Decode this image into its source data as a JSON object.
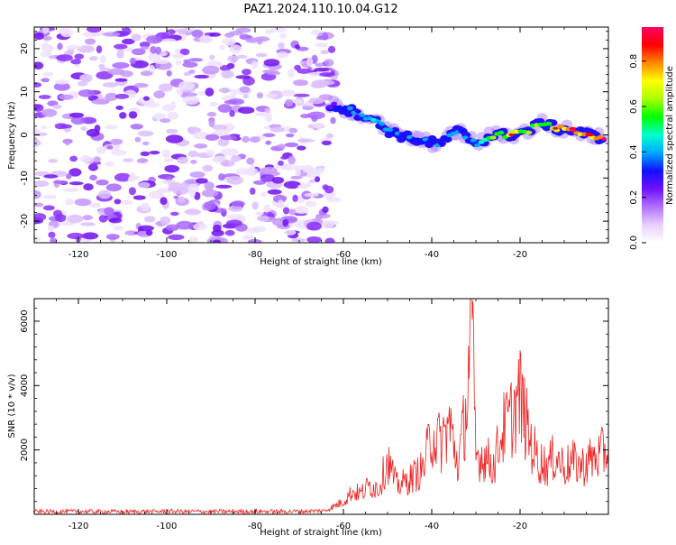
{
  "title": "PAZ1.2024.110.10.04.G12",
  "colors": {
    "snr_line": "#ee2222",
    "colormap": [
      "#ffffff",
      "#e8d0ff",
      "#b070ff",
      "#7010ff",
      "#1010ff",
      "#00aaff",
      "#00ffcc",
      "#00ff00",
      "#aaff00",
      "#ffff00",
      "#ff8800",
      "#ff0000",
      "#ff0066"
    ]
  },
  "chart_data": [
    {
      "type": "heatmap",
      "xlabel": "Height of straight line (km)",
      "ylabel": "Frequency (Hz)",
      "xlim": [
        -130,
        0
      ],
      "ylim": [
        -25,
        25
      ],
      "xticks": [
        -120,
        -100,
        -80,
        -60,
        -40,
        -20
      ],
      "yticks": [
        -20,
        -10,
        0,
        10,
        20
      ],
      "colorbar": {
        "label": "Normalized spectral amplitude",
        "range": [
          0,
          0.95
        ],
        "ticks": [
          "0.0",
          "0.2",
          "0.4",
          "0.6",
          "0.8"
        ]
      },
      "noise_region": {
        "x": [
          -130,
          -62
        ],
        "y": [
          -25,
          25
        ],
        "amplitude": "low (0.0-0.2)"
      },
      "signal_track": {
        "x": [
          -63,
          -58,
          -54,
          -50,
          -46,
          -42,
          -38,
          -34,
          -30,
          -26,
          -22,
          -18,
          -15,
          -12,
          -8,
          -4,
          -1
        ],
        "frequency": [
          7,
          5.5,
          4,
          1,
          -0.5,
          -1.5,
          -2,
          1,
          -2,
          0,
          0,
          1,
          3,
          1.5,
          1,
          0,
          -1
        ],
        "amplitude": [
          0.25,
          0.4,
          0.45,
          0.4,
          0.35,
          0.4,
          0.35,
          0.4,
          0.4,
          0.6,
          0.75,
          0.65,
          0.6,
          0.75,
          0.85,
          0.8,
          0.9
        ]
      }
    },
    {
      "type": "line",
      "xlabel": "Height of straight line (km)",
      "ylabel": "SNR (10 * v/v)",
      "xlim": [
        -130,
        0
      ],
      "ylim": [
        0,
        6700
      ],
      "xticks": [
        -120,
        -100,
        -80,
        -60,
        -40,
        -20
      ],
      "yticks": [
        2000,
        4000,
        6000
      ],
      "series": [
        {
          "x": [
            -130,
            -120,
            -110,
            -100,
            -90,
            -80,
            -70,
            -64,
            -60,
            -58,
            -56,
            -54,
            -52,
            -50,
            -48,
            -46,
            -44,
            -42,
            -40,
            -38,
            -36,
            -34,
            -32,
            -31,
            -30,
            -28,
            -26,
            -24,
            -22,
            -20,
            -18,
            -16,
            -14,
            -12,
            -10,
            -8,
            -6,
            -4,
            -2,
            0
          ],
          "y": [
            80,
            90,
            80,
            90,
            85,
            90,
            90,
            120,
            400,
            700,
            650,
            900,
            800,
            1700,
            900,
            1000,
            1200,
            1400,
            2500,
            2200,
            2800,
            1500,
            3500,
            6300,
            1800,
            1800,
            1500,
            2600,
            3000,
            3700,
            2400,
            1700,
            1500,
            1800,
            1500,
            1600,
            1500,
            1700,
            1800,
            2100
          ]
        }
      ]
    }
  ]
}
